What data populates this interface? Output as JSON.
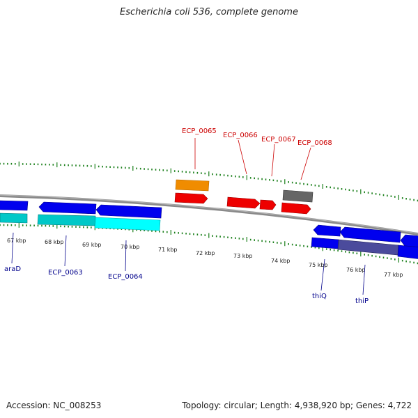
{
  "title": "Escherichia coli 536, complete genome",
  "footer": {
    "accession": "Accession: NC_008253",
    "summary": "Topology: circular; Length: 4,938,920 bp; Genes: 4,722"
  },
  "colors": {
    "backbone": "#8a8a8a",
    "tick": "#1a7f1a",
    "forward_gene": "#0000ee",
    "reverse_gene": "#ee0000",
    "cds": "#00c8c8",
    "rna": "#f08c00",
    "pseudo": "#666666",
    "label_blue": "#00008b",
    "label_red": "#cc0000"
  },
  "scale_labels": [
    "67 kbp",
    "68 kbp",
    "69 kbp",
    "70 kbp",
    "71 kbp",
    "72 kbp",
    "73 kbp",
    "74 kbp",
    "75 kbp",
    "76 kbp",
    "77 kbp"
  ],
  "top_labels": [
    "ECP_0065",
    "ECP_0066",
    "ECP_0067",
    "ECP_0068"
  ],
  "bottom_labels": [
    "araD",
    "ECP_0063",
    "ECP_0064",
    "thiQ",
    "thiP"
  ]
}
